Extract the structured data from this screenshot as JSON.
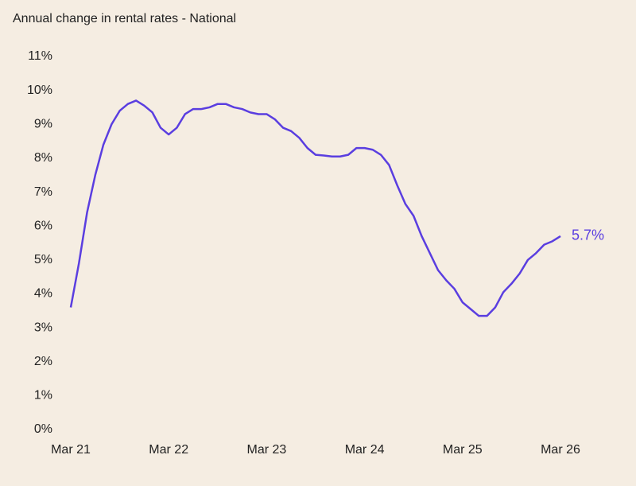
{
  "chart_data": {
    "type": "line",
    "title": "Annual change in rental rates - National",
    "categories": [
      "Mar 21",
      null,
      null,
      null,
      null,
      null,
      null,
      null,
      null,
      null,
      null,
      null,
      "Mar 22",
      null,
      null,
      null,
      null,
      null,
      null,
      null,
      null,
      null,
      null,
      null,
      "Mar 23",
      null,
      null,
      null,
      null,
      null,
      null,
      null,
      null,
      null,
      null,
      null,
      "Mar 24",
      null,
      null,
      null,
      null,
      null,
      null,
      null,
      null,
      null,
      null,
      null,
      "Mar 25",
      null,
      null,
      null,
      null,
      null,
      null,
      null,
      null,
      null,
      null,
      null,
      "Mar 26"
    ],
    "values": [
      3.6,
      4.9,
      6.4,
      7.5,
      8.4,
      9.0,
      9.4,
      9.6,
      9.7,
      9.55,
      9.35,
      8.9,
      8.7,
      8.9,
      9.3,
      9.45,
      9.45,
      9.5,
      9.6,
      9.6,
      9.5,
      9.45,
      9.35,
      9.3,
      9.3,
      9.15,
      8.9,
      8.8,
      8.6,
      8.3,
      8.1,
      8.08,
      8.05,
      8.05,
      8.1,
      8.3,
      8.3,
      8.25,
      8.1,
      7.8,
      7.2,
      6.65,
      6.3,
      5.7,
      5.2,
      4.7,
      4.4,
      4.15,
      3.75,
      3.55,
      3.35,
      3.35,
      3.6,
      4.05,
      4.3,
      4.6,
      5.0,
      5.2,
      5.45,
      5.55,
      5.7
    ],
    "value_labels": [
      null,
      null,
      null,
      null,
      null,
      null,
      null,
      null,
      null,
      null,
      null,
      null,
      null,
      null,
      null,
      null,
      null,
      null,
      null,
      null,
      null,
      null,
      null,
      null,
      null,
      null,
      null,
      null,
      null,
      null,
      null,
      null,
      null,
      null,
      null,
      null,
      null,
      null,
      null,
      null,
      null,
      null,
      null,
      null,
      null,
      null,
      null,
      null,
      null,
      null,
      null,
      null,
      null,
      null,
      null,
      null,
      null,
      null,
      null,
      null,
      "5.7%"
    ],
    "color": "#5a3ee0",
    "ylim": [
      0,
      11
    ],
    "yticks": [
      {
        "value": 0,
        "label": "0%"
      },
      {
        "value": 1,
        "label": "1%"
      },
      {
        "value": 2,
        "label": "2%"
      },
      {
        "value": 3,
        "label": "3%"
      },
      {
        "value": 4,
        "label": "4%"
      },
      {
        "value": 5,
        "label": "5%"
      },
      {
        "value": 6,
        "label": "6%"
      },
      {
        "value": 7,
        "label": "7%"
      },
      {
        "value": 8,
        "label": "8%"
      },
      {
        "value": 9,
        "label": "9%"
      },
      {
        "value": 10,
        "label": "10%"
      },
      {
        "value": 11,
        "label": "11%"
      }
    ],
    "grid": false
  }
}
